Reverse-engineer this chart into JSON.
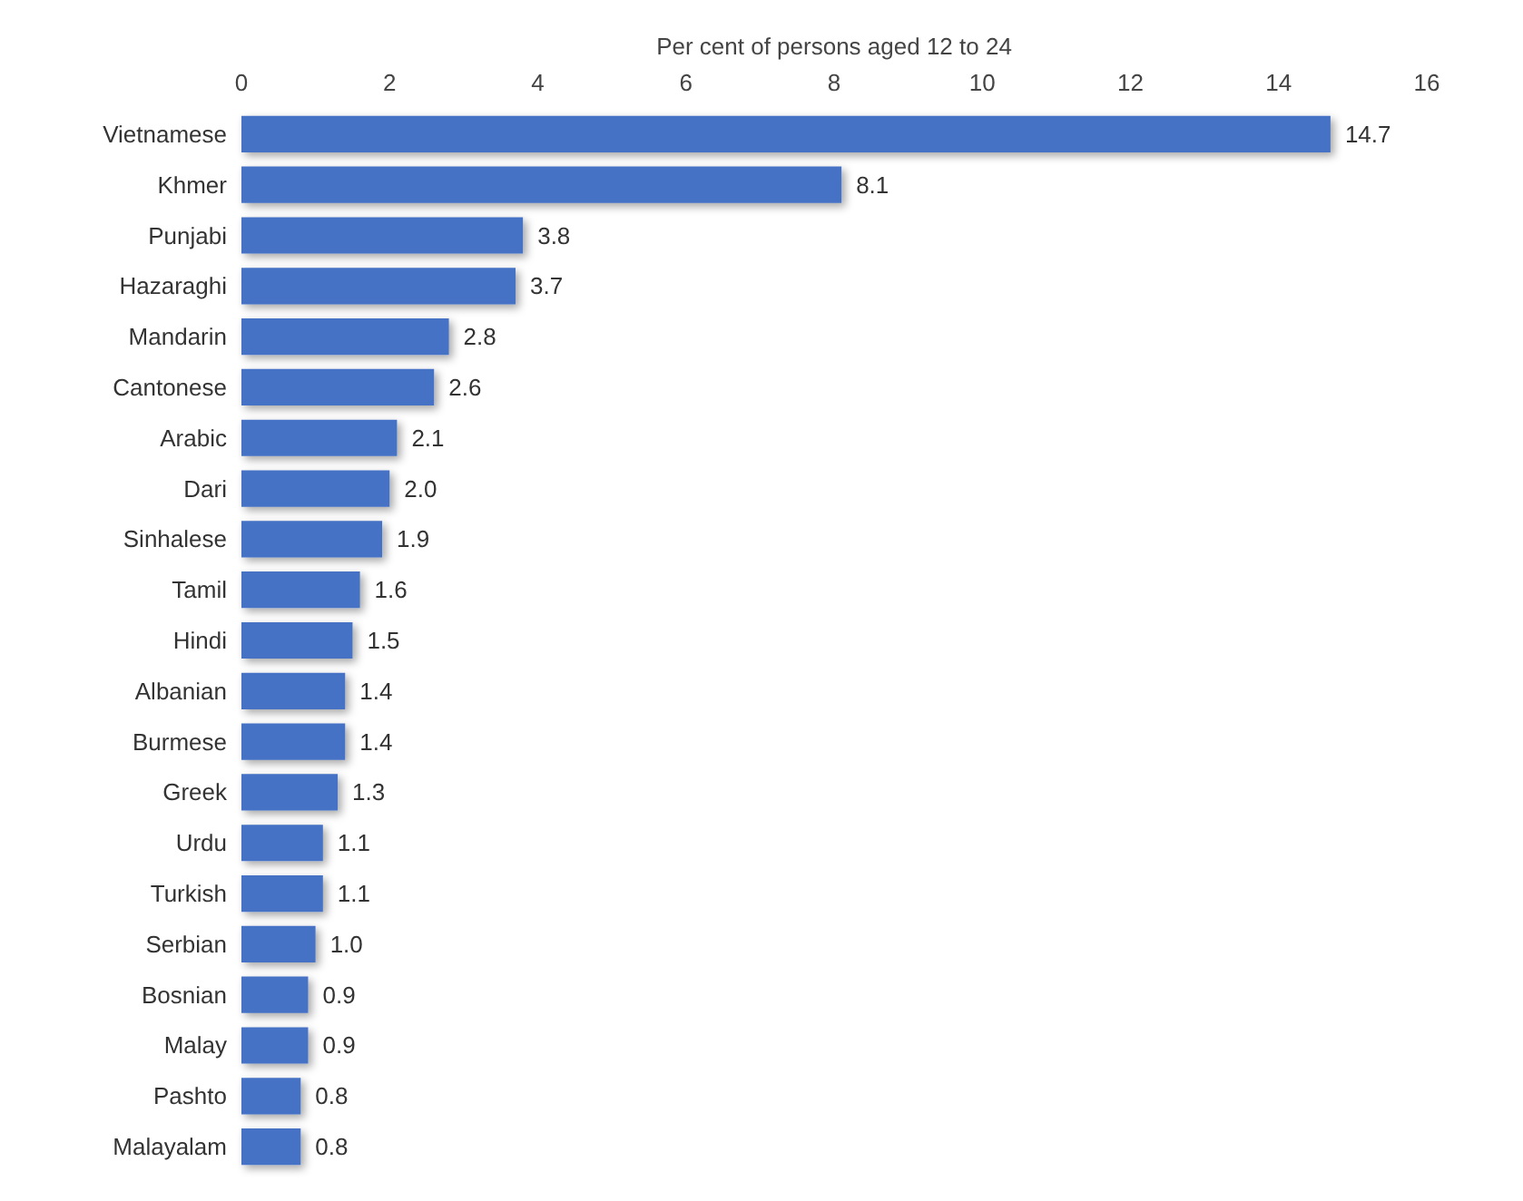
{
  "chart_data": {
    "type": "bar",
    "orientation": "horizontal",
    "xlabel": "Per cent of persons aged 12 to 24",
    "categories": [
      "Vietnamese",
      "Khmer",
      "Punjabi",
      "Hazaraghi",
      "Mandarin",
      "Cantonese",
      "Arabic",
      "Dari",
      "Sinhalese",
      "Tamil",
      "Hindi",
      "Albanian",
      "Burmese",
      "Greek",
      "Urdu",
      "Turkish",
      "Serbian",
      "Bosnian",
      "Malay",
      "Pashto",
      "Malayalam"
    ],
    "values": [
      14.7,
      8.1,
      3.8,
      3.7,
      2.8,
      2.6,
      2.1,
      2.0,
      1.9,
      1.6,
      1.5,
      1.4,
      1.4,
      1.3,
      1.1,
      1.1,
      1.0,
      0.9,
      0.9,
      0.8,
      0.8
    ],
    "value_labels": [
      "14.7",
      "8.1",
      "3.8",
      "3.7",
      "2.8",
      "2.6",
      "2.1",
      "2.0",
      "1.9",
      "1.6",
      "1.5",
      "1.4",
      "1.4",
      "1.3",
      "1.1",
      "1.1",
      "1.0",
      "0.9",
      "0.9",
      "0.8",
      "0.8"
    ],
    "color": "#4472c4",
    "xlim": [
      0,
      16
    ],
    "xticks": [
      0,
      2,
      4,
      6,
      8,
      10,
      12,
      14,
      16
    ],
    "grid": false
  }
}
